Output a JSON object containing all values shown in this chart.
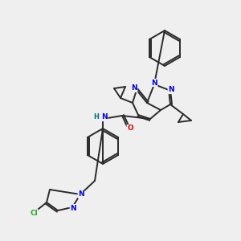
{
  "background_color": "#efefef",
  "bond_color": "#2a2a2a",
  "bond_width": 1.4,
  "atom_colors": {
    "N": "#0000ee",
    "O": "#dd0000",
    "Cl": "#22aa22",
    "C": "#2a2a2a",
    "H": "#007070"
  },
  "figsize": [
    3.0,
    3.0
  ],
  "dpi": 100
}
